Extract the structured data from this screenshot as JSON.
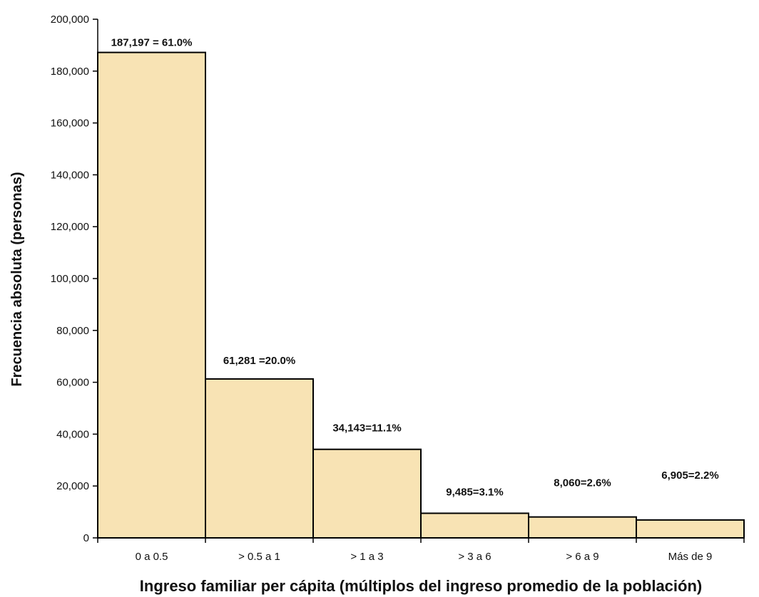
{
  "chart_data": {
    "type": "bar",
    "title": "",
    "xlabel": "Ingreso familiar per cápita (múltiplos del ingreso promedio de la población)",
    "ylabel": "Frecuencia absoluta (personas)",
    "categories": [
      "0 a 0.5",
      "> 0.5 a 1",
      "> 1 a 3",
      "> 3 a 6",
      "> 6 a 9",
      "Más de 9"
    ],
    "values": [
      187197,
      61281,
      34143,
      9485,
      8060,
      6905
    ],
    "data_labels": [
      "187,197 = 61.0%",
      "61,281 =20.0%",
      "34,143=11.1%",
      "9,485=3.1%",
      "8,060=2.6%",
      "6,905=2.2%"
    ],
    "ylim": [
      0,
      200000
    ],
    "yticks": [
      0,
      20000,
      40000,
      60000,
      80000,
      100000,
      120000,
      140000,
      160000,
      180000,
      200000
    ],
    "ytick_labels": [
      "0",
      "20,000",
      "40,000",
      "60,000",
      "80,000",
      "100,000",
      "120,000",
      "140,000",
      "160,000",
      "180,000",
      "200,000"
    ],
    "grid": false,
    "legend": "none",
    "bar_color": "#f8e3b4",
    "bar_edge_color": "#000000"
  }
}
